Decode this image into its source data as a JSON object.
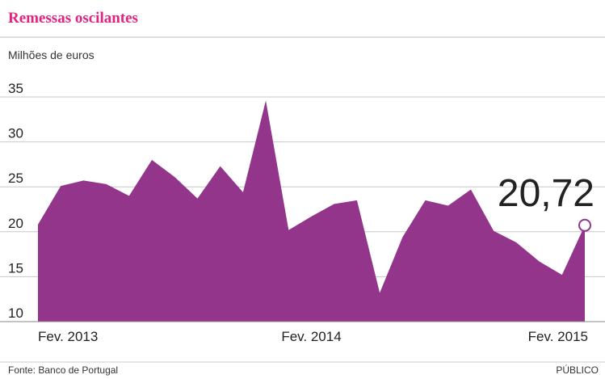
{
  "chart_data": {
    "type": "area",
    "title": "Remessas oscilantes",
    "subtitle": "Milhões de euros",
    "source": "Fonte: Banco de Portugal",
    "credit": "PÚBLICO",
    "categories": [
      "Fev. 2013",
      null,
      null,
      null,
      null,
      null,
      null,
      null,
      null,
      null,
      null,
      null,
      "Fev. 2014",
      null,
      null,
      null,
      null,
      null,
      null,
      null,
      null,
      null,
      null,
      null,
      "Fev. 2015"
    ],
    "values": [
      20.8,
      25.1,
      25.7,
      25.3,
      24.0,
      28.0,
      26.1,
      23.7,
      27.3,
      24.4,
      34.6,
      20.2,
      21.7,
      23.1,
      23.5,
      13.2,
      19.4,
      23.5,
      22.9,
      24.7,
      20.1,
      18.8,
      16.7,
      15.2,
      20.72
    ],
    "value_labels": [
      null,
      null,
      null,
      null,
      null,
      null,
      null,
      null,
      null,
      null,
      null,
      null,
      null,
      null,
      null,
      null,
      null,
      null,
      null,
      null,
      null,
      null,
      null,
      null,
      "20,72"
    ],
    "color": "#93358a",
    "ylim": [
      10,
      35
    ],
    "yticks": [
      10,
      15,
      20,
      25,
      30,
      35
    ],
    "grid": true
  }
}
